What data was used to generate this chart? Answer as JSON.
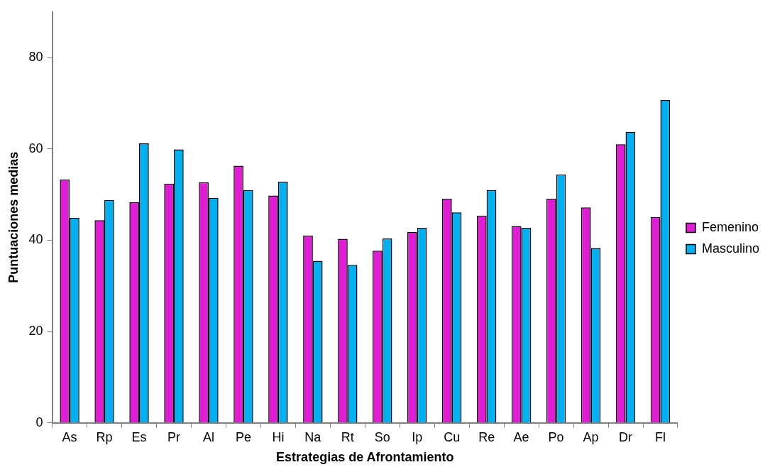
{
  "chart_data": {
    "type": "bar",
    "xlabel": "Estrategias de Afrontamiento",
    "ylabel": "Puntuaciones medias",
    "categories": [
      "As",
      "Rp",
      "Es",
      "Pr",
      "Al",
      "Pe",
      "Hi",
      "Na",
      "Rt",
      "So",
      "Ip",
      "Cu",
      "Re",
      "Ae",
      "Po",
      "Ap",
      "Dr",
      "Fl"
    ],
    "series": [
      {
        "name": "Femenino",
        "color": "#e01cd5",
        "values": [
          53.3,
          44.4,
          48.3,
          52.4,
          52.7,
          56.3,
          49.8,
          41.0,
          40.3,
          37.7,
          41.8,
          49.1,
          45.4,
          43.1,
          49.1,
          47.2,
          61.0,
          45.1
        ]
      },
      {
        "name": "Masculino",
        "color": "#00b0f0",
        "values": [
          44.9,
          48.8,
          61.2,
          59.9,
          49.3,
          51.0,
          52.8,
          35.5,
          34.6,
          40.4,
          42.7,
          46.1,
          51.0,
          42.7,
          54.4,
          38.3,
          63.7,
          70.7
        ]
      }
    ],
    "ylim": [
      0,
      90
    ],
    "yticks": [
      0,
      20,
      40,
      60,
      80
    ],
    "grid": false,
    "legend": "right"
  }
}
